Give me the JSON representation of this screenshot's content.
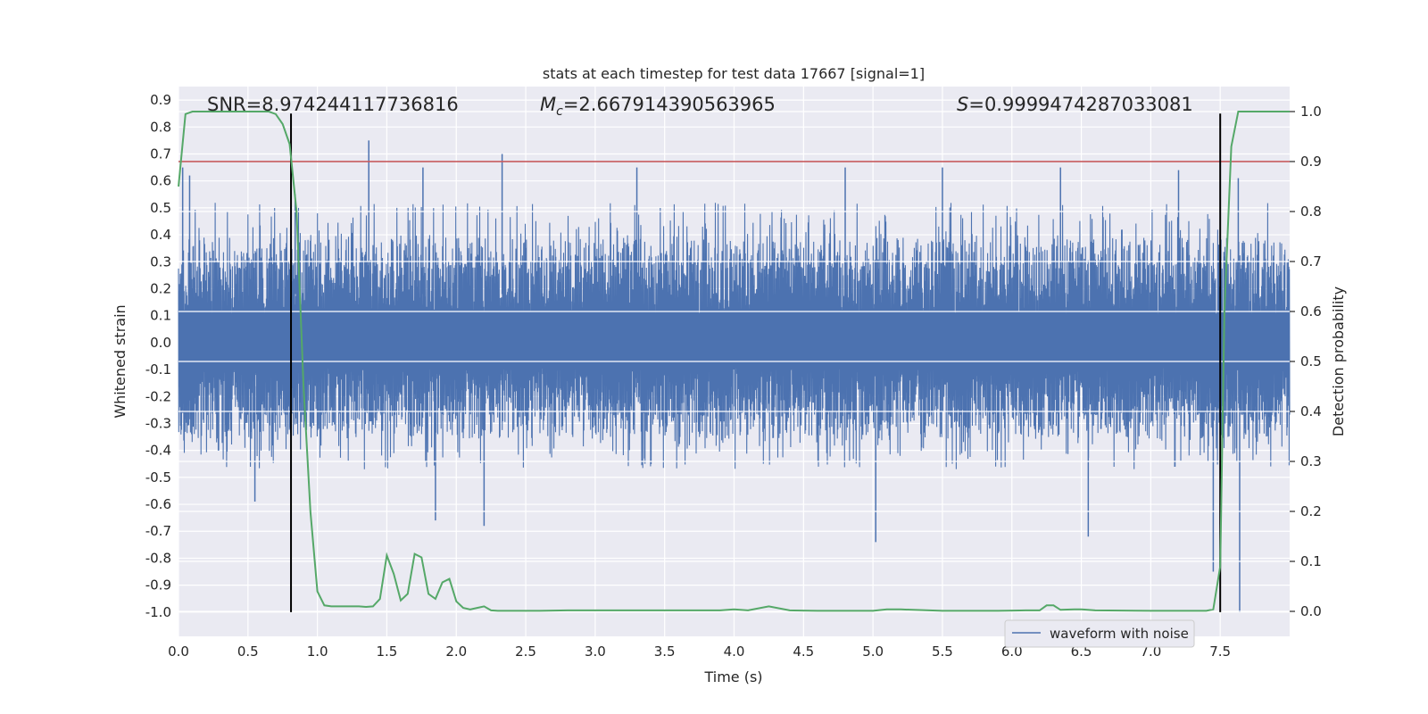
{
  "chart_data": {
    "type": "line",
    "title": "stats at each timestep for test data 17667 [signal=1]",
    "xlabel": "Time (s)",
    "ylabel_left": "Whitened strain",
    "ylabel_right": "Detection probability",
    "xlim": [
      0.0,
      8.0
    ],
    "ylim_left": [
      -1.09,
      0.95
    ],
    "ylim_right": [
      -0.05,
      1.05
    ],
    "x_ticks": [
      "0.0",
      "0.5",
      "1.0",
      "1.5",
      "2.0",
      "2.5",
      "3.0",
      "3.5",
      "4.0",
      "4.5",
      "5.0",
      "5.5",
      "6.0",
      "6.5",
      "7.0",
      "7.5"
    ],
    "x_tick_values": [
      0.0,
      0.5,
      1.0,
      1.5,
      2.0,
      2.5,
      3.0,
      3.5,
      4.0,
      4.5,
      5.0,
      5.5,
      6.0,
      6.5,
      7.0,
      7.5
    ],
    "y_left_ticks": [
      "0.9",
      "0.8",
      "0.7",
      "0.6",
      "0.5",
      "0.4",
      "0.3",
      "0.2",
      "0.1",
      "0.0",
      "-0.1",
      "-0.2",
      "-0.3",
      "-0.4",
      "-0.5",
      "-0.6",
      "-0.7",
      "-0.8",
      "-0.9",
      "-1.0"
    ],
    "y_left_tick_values": [
      0.9,
      0.8,
      0.7,
      0.6,
      0.5,
      0.4,
      0.3,
      0.2,
      0.1,
      0.0,
      -0.1,
      -0.2,
      -0.3,
      -0.4,
      -0.5,
      -0.6,
      -0.7,
      -0.8,
      -0.9,
      -1.0
    ],
    "y_right_ticks": [
      "1.0",
      "0.9",
      "0.8",
      "0.7",
      "0.6",
      "0.5",
      "0.4",
      "0.3",
      "0.2",
      "0.1",
      "0.0"
    ],
    "y_right_tick_values": [
      1.0,
      0.9,
      0.8,
      0.7,
      0.6,
      0.5,
      0.4,
      0.3,
      0.2,
      0.1,
      0.0
    ],
    "annotations": {
      "snr": "SNR=8.974244117736816",
      "mc_symbol": "M",
      "mc_sub": "c",
      "mc_value": "=2.667914390563965",
      "s_symbol": "S",
      "s_value": "=0.9999474287033081"
    },
    "threshold_line": {
      "value": 0.9,
      "axis": "right",
      "color": "#c44e52"
    },
    "vertical_lines": [
      {
        "x": 0.81,
        "ymin": -1.0,
        "ymax": 0.85
      },
      {
        "x": 7.5,
        "ymin": -1.0,
        "ymax": 0.85
      }
    ],
    "waveform": {
      "name": "waveform with noise",
      "color": "#4c72b0",
      "typical_band": [
        -0.27,
        0.3
      ],
      "peaks_up": [
        {
          "x": 0.03,
          "y": 0.65
        },
        {
          "x": 0.08,
          "y": 0.62
        },
        {
          "x": 0.84,
          "y": 0.55
        },
        {
          "x": 1.37,
          "y": 0.75
        },
        {
          "x": 1.76,
          "y": 0.65
        },
        {
          "x": 2.33,
          "y": 0.7
        },
        {
          "x": 3.3,
          "y": 0.65
        },
        {
          "x": 4.8,
          "y": 0.65
        },
        {
          "x": 5.5,
          "y": 0.65
        },
        {
          "x": 6.35,
          "y": 0.65
        },
        {
          "x": 7.2,
          "y": 0.64
        },
        {
          "x": 7.63,
          "y": 0.61
        }
      ],
      "peaks_down": [
        {
          "x": 0.55,
          "y": -0.59
        },
        {
          "x": 1.85,
          "y": -0.66
        },
        {
          "x": 2.2,
          "y": -0.68
        },
        {
          "x": 5.02,
          "y": -0.74
        },
        {
          "x": 6.55,
          "y": -0.72
        },
        {
          "x": 7.45,
          "y": -0.85
        },
        {
          "x": 7.64,
          "y": -1.0
        }
      ]
    },
    "detection_probability": {
      "color": "#55a868",
      "x": [
        0.0,
        0.05,
        0.1,
        0.15,
        0.2,
        0.3,
        0.4,
        0.5,
        0.6,
        0.65,
        0.7,
        0.75,
        0.8,
        0.85,
        0.9,
        0.95,
        1.0,
        1.05,
        1.1,
        1.2,
        1.25,
        1.3,
        1.35,
        1.4,
        1.45,
        1.5,
        1.55,
        1.6,
        1.65,
        1.7,
        1.75,
        1.8,
        1.85,
        1.9,
        1.95,
        2.0,
        2.05,
        2.1,
        2.15,
        2.2,
        2.25,
        2.3,
        2.35,
        2.4,
        2.5,
        2.6,
        2.8,
        3.0,
        3.2,
        3.5,
        3.9,
        4.0,
        4.1,
        4.25,
        4.4,
        4.6,
        5.0,
        5.1,
        5.2,
        5.5,
        5.9,
        6.1,
        6.2,
        6.25,
        6.3,
        6.35,
        6.45,
        6.5,
        6.6,
        7.0,
        7.2,
        7.3,
        7.4,
        7.45,
        7.5,
        7.53,
        7.58,
        7.63,
        7.65,
        7.7,
        7.8,
        8.0
      ],
      "y": [
        0.85,
        0.995,
        1.0,
        1.0,
        1.0,
        1.0,
        1.0,
        1.0,
        1.0,
        1.0,
        0.995,
        0.975,
        0.935,
        0.8,
        0.45,
        0.2,
        0.04,
        0.012,
        0.01,
        0.01,
        0.01,
        0.01,
        0.009,
        0.01,
        0.025,
        0.112,
        0.075,
        0.022,
        0.035,
        0.115,
        0.108,
        0.035,
        0.025,
        0.058,
        0.065,
        0.02,
        0.007,
        0.004,
        0.007,
        0.01,
        0.002,
        0.001,
        0.001,
        0.001,
        0.001,
        0.001,
        0.002,
        0.002,
        0.002,
        0.002,
        0.002,
        0.004,
        0.002,
        0.01,
        0.002,
        0.001,
        0.001,
        0.004,
        0.004,
        0.001,
        0.001,
        0.002,
        0.002,
        0.012,
        0.012,
        0.003,
        0.004,
        0.004,
        0.002,
        0.001,
        0.001,
        0.001,
        0.001,
        0.004,
        0.09,
        0.6,
        0.93,
        1.0,
        1.0,
        1.0,
        1.0,
        1.0
      ]
    },
    "legend": {
      "label": "waveform with noise",
      "placement": "lower-right"
    },
    "grid": true
  }
}
